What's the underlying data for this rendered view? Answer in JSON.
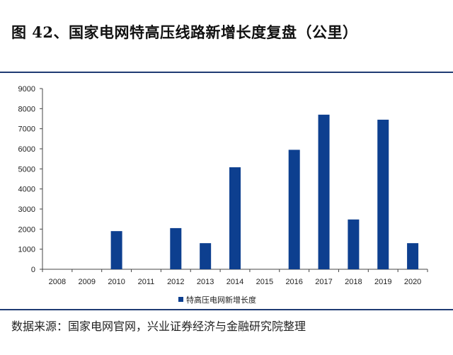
{
  "figure_title": "图 42、国家电网特高压线路新增长度复盘（公里）",
  "source_note": "数据来源：国家电网官网，兴业证券经济与金融研究院整理",
  "colors": {
    "bar": "#0d3f8f",
    "axis": "#444444",
    "rule": "#1f3b73"
  },
  "chart_data": {
    "type": "bar",
    "title": "",
    "xlabel": "",
    "ylabel": "",
    "categories": [
      "2008",
      "2009",
      "2010",
      "2011",
      "2012",
      "2013",
      "2014",
      "2015",
      "2016",
      "2017",
      "2018",
      "2019",
      "2020"
    ],
    "series": [
      {
        "name": "特高压电网新增长度",
        "values": [
          0,
          0,
          1900,
          0,
          2050,
          1300,
          5080,
          0,
          5950,
          7700,
          2480,
          7450,
          1300
        ]
      }
    ],
    "ylim": [
      0,
      9000
    ],
    "yticks": [
      0,
      1000,
      2000,
      3000,
      4000,
      5000,
      6000,
      7000,
      8000,
      9000
    ],
    "grid": false,
    "legend": "bottom-center"
  }
}
